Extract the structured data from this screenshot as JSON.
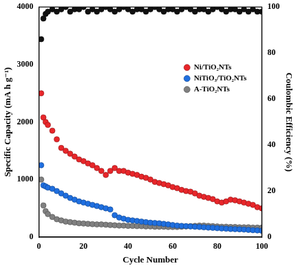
{
  "chart_data": {
    "type": "scatter",
    "x_label": "Cycle Number",
    "y_label": "Specific Capacity (mA h g⁻¹)",
    "y2_label": "Coulombic Efficiency (%)",
    "x": [
      1,
      2,
      3,
      4,
      6,
      8,
      10,
      12,
      14,
      16,
      18,
      20,
      22,
      24,
      26,
      28,
      30,
      32,
      34,
      36,
      38,
      40,
      42,
      44,
      46,
      48,
      50,
      52,
      54,
      56,
      58,
      60,
      62,
      64,
      66,
      68,
      70,
      72,
      74,
      76,
      78,
      80,
      82,
      84,
      86,
      88,
      90,
      92,
      94,
      96,
      98,
      100
    ],
    "series": [
      {
        "name": "Ni/TiO₂NTs",
        "color": "#e8262a",
        "marker": "circle",
        "values": [
          2500,
          2080,
          2000,
          1950,
          1850,
          1700,
          1550,
          1500,
          1450,
          1400,
          1350,
          1320,
          1280,
          1250,
          1200,
          1150,
          1080,
          1150,
          1200,
          1150,
          1150,
          1120,
          1100,
          1080,
          1050,
          1030,
          1000,
          960,
          940,
          920,
          900,
          870,
          850,
          820,
          800,
          790,
          760,
          720,
          700,
          680,
          660,
          620,
          600,
          620,
          650,
          640,
          620,
          600,
          580,
          560,
          520,
          500
        ]
      },
      {
        "name": "NiTiO₃/TiO₂NTs",
        "color": "#1f6fe0",
        "marker": "circle",
        "values": [
          1250,
          900,
          880,
          860,
          840,
          800,
          760,
          720,
          680,
          650,
          620,
          600,
          580,
          560,
          540,
          520,
          500,
          480,
          380,
          340,
          320,
          300,
          290,
          280,
          270,
          260,
          250,
          245,
          240,
          230,
          220,
          210,
          200,
          195,
          190,
          185,
          180,
          175,
          170,
          165,
          160,
          155,
          150,
          145,
          140,
          138,
          135,
          130,
          125,
          120,
          115,
          110
        ]
      },
      {
        "name": "A-TiO₂NTs",
        "color": "#808080",
        "marker": "circle",
        "values": [
          1000,
          550,
          450,
          400,
          350,
          310,
          290,
          270,
          260,
          250,
          240,
          235,
          230,
          225,
          220,
          220,
          215,
          210,
          205,
          200,
          200,
          195,
          195,
          190,
          190,
          185,
          185,
          180,
          180,
          180,
          175,
          175,
          175,
          180,
          185,
          190,
          195,
          200,
          200,
          195,
          190,
          185,
          180,
          180,
          175,
          175,
          170,
          170,
          170,
          165,
          165,
          165
        ]
      },
      {
        "color": "#111111",
        "marker": "circle",
        "axis": "y2",
        "values": [
          86,
          95,
          97,
          98,
          99,
          98,
          99,
          100,
          98,
          99,
          99,
          100,
          98,
          99,
          98,
          99,
          100,
          99,
          98,
          99,
          100,
          99,
          98,
          99,
          99,
          98,
          99,
          100,
          99,
          98,
          99,
          99,
          98,
          99,
          100,
          99,
          98,
          99,
          99,
          98,
          99,
          100,
          99,
          98,
          99,
          99,
          98,
          99,
          98,
          99,
          98,
          98
        ]
      }
    ],
    "xlim": [
      0,
      100
    ],
    "xticks": [
      0,
      20,
      40,
      60,
      80,
      100
    ],
    "ylim": [
      0,
      4000
    ],
    "yticks": [
      0,
      1000,
      2000,
      3000,
      4000
    ],
    "y2lim": [
      0,
      100
    ],
    "y2ticks": [
      0,
      20,
      40,
      60,
      80,
      100
    ],
    "grid": false,
    "legend": "upper right"
  }
}
